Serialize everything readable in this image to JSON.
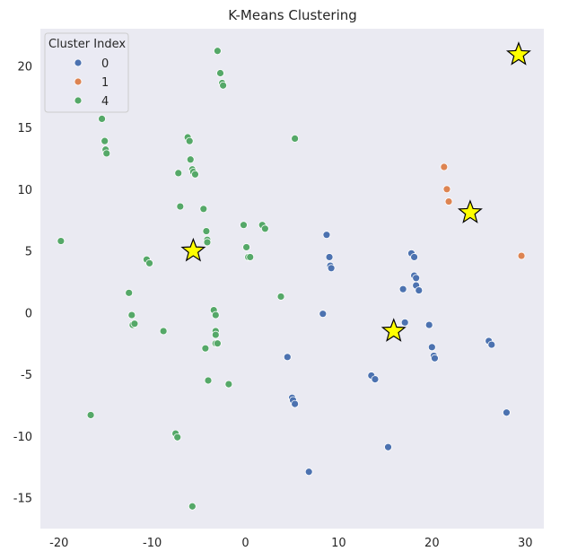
{
  "chart_data": {
    "type": "scatter",
    "title": "K-Means Clustering",
    "xlabel": "",
    "ylabel": "",
    "xlim": [
      -22,
      32
    ],
    "ylim": [
      -17.5,
      23
    ],
    "xticks": [
      -20,
      -10,
      0,
      10,
      20,
      30
    ],
    "yticks": [
      -15,
      -10,
      -5,
      0,
      5,
      10,
      15,
      20
    ],
    "grid": false,
    "legend": {
      "title": "Cluster Index",
      "placement": "top-left",
      "entries": [
        {
          "label": "0",
          "color": "#4c72b0"
        },
        {
          "label": "1",
          "color": "#dd8452"
        },
        {
          "label": "4",
          "color": "#55a868"
        }
      ]
    },
    "series": [
      {
        "name": "0",
        "color": "#4c72b0",
        "points": [
          [
            8.7,
            6.3
          ],
          [
            9.0,
            4.5
          ],
          [
            9.1,
            3.8
          ],
          [
            9.2,
            3.6
          ],
          [
            8.3,
            -0.1
          ],
          [
            4.5,
            -3.6
          ],
          [
            5.0,
            -6.9
          ],
          [
            5.1,
            -7.1
          ],
          [
            5.3,
            -7.4
          ],
          [
            6.8,
            -12.9
          ],
          [
            13.5,
            -5.1
          ],
          [
            13.9,
            -5.4
          ],
          [
            15.3,
            -10.9
          ],
          [
            16.9,
            1.9
          ],
          [
            17.1,
            -0.8
          ],
          [
            17.8,
            4.8
          ],
          [
            18.1,
            4.5
          ],
          [
            18.1,
            3.0
          ],
          [
            18.3,
            2.8
          ],
          [
            18.3,
            2.2
          ],
          [
            18.6,
            1.8
          ],
          [
            19.7,
            -1.0
          ],
          [
            20.0,
            -2.8
          ],
          [
            20.2,
            -3.5
          ],
          [
            20.3,
            -3.7
          ],
          [
            26.1,
            -2.3
          ],
          [
            26.4,
            -2.6
          ],
          [
            28.0,
            -8.1
          ]
        ]
      },
      {
        "name": "1",
        "color": "#dd8452",
        "points": [
          [
            21.3,
            11.8
          ],
          [
            21.6,
            10.0
          ],
          [
            21.8,
            9.0
          ],
          [
            29.6,
            4.6
          ],
          [
            29.1,
            21.1
          ]
        ]
      },
      {
        "name": "4",
        "color": "#55a868",
        "points": [
          [
            -19.8,
            5.8
          ],
          [
            -16.6,
            -8.3
          ],
          [
            -15.4,
            15.7
          ],
          [
            -15.1,
            13.9
          ],
          [
            -15.0,
            13.2
          ],
          [
            -14.9,
            12.9
          ],
          [
            -12.5,
            1.6
          ],
          [
            -12.2,
            -0.2
          ],
          [
            -12.1,
            -1.0
          ],
          [
            -11.9,
            -0.9
          ],
          [
            -10.6,
            4.3
          ],
          [
            -10.3,
            4.0
          ],
          [
            -8.8,
            -1.5
          ],
          [
            -7.5,
            -9.8
          ],
          [
            -7.3,
            -10.1
          ],
          [
            -7.2,
            11.3
          ],
          [
            -7.0,
            8.6
          ],
          [
            -6.2,
            14.2
          ],
          [
            -6.0,
            13.9
          ],
          [
            -5.9,
            12.4
          ],
          [
            -5.7,
            11.6
          ],
          [
            -5.6,
            11.4
          ],
          [
            -5.4,
            11.2
          ],
          [
            -5.7,
            -15.7
          ],
          [
            -4.5,
            8.4
          ],
          [
            -4.2,
            6.6
          ],
          [
            -4.1,
            5.9
          ],
          [
            -4.1,
            5.7
          ],
          [
            -4.3,
            -2.9
          ],
          [
            -4.0,
            -5.5
          ],
          [
            -3.4,
            0.2
          ],
          [
            -3.2,
            -0.2
          ],
          [
            -3.2,
            -1.5
          ],
          [
            -3.2,
            -1.8
          ],
          [
            -3.2,
            -2.5
          ],
          [
            -3.0,
            -2.5
          ],
          [
            -3.0,
            21.2
          ],
          [
            -2.7,
            19.4
          ],
          [
            -2.5,
            18.6
          ],
          [
            -2.4,
            18.4
          ],
          [
            -1.8,
            -5.8
          ],
          [
            -0.2,
            7.1
          ],
          [
            0.1,
            5.3
          ],
          [
            0.3,
            4.5
          ],
          [
            0.5,
            4.5
          ],
          [
            1.8,
            7.1
          ],
          [
            2.1,
            6.8
          ],
          [
            3.8,
            1.3
          ],
          [
            5.3,
            14.1
          ]
        ]
      }
    ],
    "centroids": {
      "marker": "star",
      "color": "#ffff00",
      "edge_color": "#000000",
      "points": [
        [
          15.9,
          -1.5
        ],
        [
          24.1,
          8.1
        ],
        [
          29.3,
          20.9
        ],
        [
          -5.6,
          5.0
        ]
      ]
    }
  }
}
